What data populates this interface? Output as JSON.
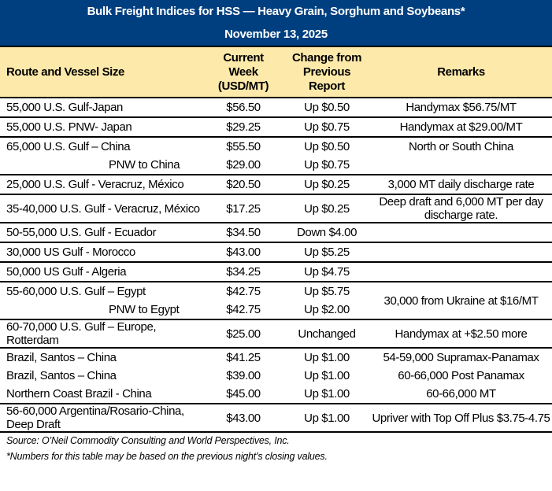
{
  "header": {
    "title": "Bulk Freight Indices for HSS — Heavy Grain, Sorghum and Soybeans*",
    "date": "November 13, 2025"
  },
  "columns": {
    "route": "Route and Vessel Size",
    "current": [
      "Current",
      "Week",
      "(USD/MT)"
    ],
    "change": [
      "Change from",
      "Previous",
      "Report"
    ],
    "remarks": "Remarks"
  },
  "colors": {
    "title_bg": "#003f7f",
    "header_bg": "#fde9a9"
  },
  "groups": [
    {
      "rows": [
        {
          "route": "55,000 U.S. Gulf-Japan",
          "current": "$56.50",
          "change": "Up $0.50",
          "remarks": "Handymax  $56.75/MT"
        }
      ]
    },
    {
      "rows": [
        {
          "route": "55,000 U.S. PNW- Japan",
          "current": "$29.25",
          "change": "Up $0.75",
          "remarks": "Handymax at $29.00/MT"
        }
      ]
    },
    {
      "rows": [
        {
          "route": "65,000 U.S. Gulf – China",
          "current": "$55.50",
          "change": "Up $0.50",
          "remarks": "North or South China"
        },
        {
          "route": "PNW to China",
          "indent": true,
          "current": "$29.00",
          "change": "Up $0.75",
          "remarks": ""
        }
      ]
    },
    {
      "rows": [
        {
          "route": "25,000 U.S. Gulf - Veracruz, México",
          "current": "$20.50",
          "change": "Up $0.25",
          "remarks": "3,000 MT daily discharge rate"
        }
      ]
    },
    {
      "rows": [
        {
          "route": "35-40,000 U.S. Gulf - Veracruz, México",
          "current": "$17.25",
          "change": "Up $0.25",
          "remarks": "Deep draft and 6,000 MT per day discharge rate."
        }
      ]
    },
    {
      "rows": [
        {
          "route": "50-55,000 U.S. Gulf - Ecuador",
          "current": "$34.50",
          "change": "Down $4.00",
          "remarks": ""
        }
      ]
    },
    {
      "rows": [
        {
          "route": "30,000 US Gulf - Morocco",
          "current": "$43.00",
          "change": "Up $5.25",
          "remarks": ""
        }
      ]
    },
    {
      "rows": [
        {
          "route": "50,000 US Gulf - Algeria",
          "current": "$34.25",
          "change": "Up $4.75",
          "remarks": ""
        }
      ]
    },
    {
      "rows": [
        {
          "route": "55-60,000 U.S. Gulf – Egypt",
          "current": "$42.75",
          "change": "Up $5.75",
          "remarks": "30,000 from Ukraine at $16/MT"
        },
        {
          "route": "PNW to Egypt",
          "indent": true,
          "current": "$42.75",
          "change": "Up $2.00",
          "remarks": null
        }
      ]
    },
    {
      "rows": [
        {
          "route": "60-70,000 U.S. Gulf – Europe, Rotterdam",
          "current": "$25.00",
          "change": "Unchanged",
          "remarks": "Handymax at +$2.50 more"
        }
      ]
    },
    {
      "rows": [
        {
          "route": "Brazil, Santos – China",
          "current": "$41.25",
          "change": "Up $1.00",
          "remarks": "54-59,000 Supramax-Panamax"
        },
        {
          "route": "Brazil, Santos – China",
          "current": "$39.00",
          "change": "Up $1.00",
          "remarks": "60-66,000  Post Panamax"
        },
        {
          "route": "Northern Coast Brazil - China",
          "current": "$45.00",
          "change": "Up $1.00",
          "remarks": "60-66,000 MT"
        }
      ]
    },
    {
      "rows": [
        {
          "route": "56-60,000 Argentina/Rosario-China, Deep Draft",
          "current": "$43.00",
          "change": "Up $1.00",
          "remarks": "Upriver with Top Off Plus $3.75-4.75"
        }
      ]
    }
  ],
  "footer": {
    "source": "Source: O’Neil Commodity Consulting and World Perspectives, Inc.",
    "note": "*Numbers for this table may be based on the previous night’s closing values."
  }
}
